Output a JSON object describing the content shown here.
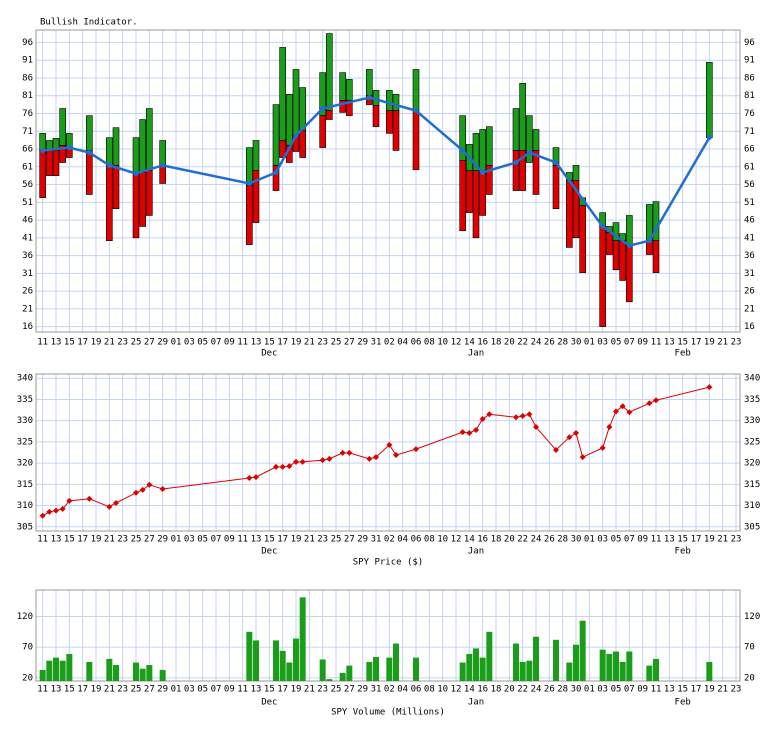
{
  "x_axis": {
    "xlim": [
      -1,
      104.6
    ],
    "xticks": [
      {
        "value": 0,
        "label": "11"
      },
      {
        "value": 2,
        "label": "13"
      },
      {
        "value": 4,
        "label": "15"
      },
      {
        "value": 6,
        "label": "17"
      },
      {
        "value": 8,
        "label": "19"
      },
      {
        "value": 10,
        "label": "21"
      },
      {
        "value": 12,
        "label": "23"
      },
      {
        "value": 14,
        "label": "25"
      },
      {
        "value": 16,
        "label": "27"
      },
      {
        "value": 18,
        "label": "29"
      },
      {
        "value": 20,
        "label": "01"
      },
      {
        "value": 22,
        "label": "03"
      },
      {
        "value": 24,
        "label": "05"
      },
      {
        "value": 26,
        "label": "07"
      },
      {
        "value": 28,
        "label": "09"
      },
      {
        "value": 30,
        "label": "11"
      },
      {
        "value": 32,
        "label": "13"
      },
      {
        "value": 34,
        "label": "15"
      },
      {
        "value": 36,
        "label": "17"
      },
      {
        "value": 38,
        "label": "19"
      },
      {
        "value": 40,
        "label": "21"
      },
      {
        "value": 42,
        "label": "23"
      },
      {
        "value": 44,
        "label": "25"
      },
      {
        "value": 46,
        "label": "27"
      },
      {
        "value": 48,
        "label": "29"
      },
      {
        "value": 50,
        "label": "31"
      },
      {
        "value": 52,
        "label": "02"
      },
      {
        "value": 54,
        "label": "04"
      },
      {
        "value": 56,
        "label": "06"
      },
      {
        "value": 58,
        "label": "08"
      },
      {
        "value": 60,
        "label": "10"
      },
      {
        "value": 62,
        "label": "12"
      },
      {
        "value": 64,
        "label": "14"
      },
      {
        "value": 66,
        "label": "16"
      },
      {
        "value": 68,
        "label": "18"
      },
      {
        "value": 70,
        "label": "20"
      },
      {
        "value": 72,
        "label": "22"
      },
      {
        "value": 74,
        "label": "24"
      },
      {
        "value": 76,
        "label": "26"
      },
      {
        "value": 78,
        "label": "28"
      },
      {
        "value": 80,
        "label": "30"
      },
      {
        "value": 82,
        "label": "01"
      },
      {
        "value": 84,
        "label": "03"
      },
      {
        "value": 86,
        "label": "05"
      },
      {
        "value": 88,
        "label": "07"
      },
      {
        "value": 90,
        "label": "09"
      },
      {
        "value": 92,
        "label": "11"
      },
      {
        "value": 94,
        "label": "13"
      },
      {
        "value": 96,
        "label": "15"
      },
      {
        "value": 98,
        "label": "17"
      },
      {
        "value": 100,
        "label": "19"
      },
      {
        "value": 102,
        "label": "21"
      },
      {
        "value": 104,
        "label": "23"
      }
    ],
    "months": [
      {
        "value": 34,
        "label": "Dec"
      },
      {
        "value": 65,
        "label": "Jan"
      },
      {
        "value": 96,
        "label": "Feb"
      }
    ],
    "x": [
      0,
      1,
      2,
      3,
      4,
      7,
      10,
      11,
      14,
      15,
      16,
      18,
      31,
      32,
      35,
      36,
      37,
      38,
      39,
      42,
      43,
      45,
      46,
      49,
      50,
      52,
      53,
      56,
      63,
      64,
      65,
      66,
      67,
      71,
      72,
      73,
      74,
      77,
      79,
      80,
      81,
      84,
      85,
      86,
      87,
      88,
      91,
      92,
      100
    ]
  },
  "chart_data": [
    {
      "type": "range",
      "title": "Bullish Indicator.",
      "ylim": [
        14.5,
        99.5
      ],
      "yticks": [
        16,
        21,
        26,
        31,
        36,
        41,
        46,
        51,
        56,
        61,
        66,
        71,
        76,
        81,
        86,
        91,
        96
      ],
      "grid": true,
      "colors": {
        "up": "#1a9e1a",
        "down": "#e00000"
      },
      "high": [
        70.4,
        68.4,
        69,
        77.4,
        70.4,
        75.4,
        69.2,
        72,
        69.2,
        74.3,
        77.4,
        68.4,
        66.4,
        68.4,
        78.5,
        94.6,
        81.4,
        88.4,
        83.3,
        87.5,
        98.5,
        87.5,
        85.6,
        88.4,
        82.5,
        82.5,
        81.4,
        88.4,
        75.4,
        67.3,
        70.4,
        71.5,
        72.3,
        77.4,
        84.5,
        75.4,
        71.5,
        66.4,
        59.4,
        61.4,
        52.3,
        48.1,
        44.2,
        45.3,
        42.2,
        47.3,
        50.4,
        51.2,
        90.4
      ],
      "split": [
        65.6,
        65.6,
        65.6,
        67,
        66,
        65.6,
        61.4,
        61.4,
        59.4,
        59.4,
        59.9,
        61.4,
        55.7,
        59.9,
        61.4,
        68.4,
        67,
        69.8,
        71.2,
        75.4,
        76.8,
        79.7,
        79.7,
        81.1,
        78.3,
        76.8,
        76.8,
        76.8,
        62.8,
        59.9,
        59.9,
        59.9,
        61.4,
        65.6,
        65.6,
        62.2,
        65.6,
        61.4,
        57.1,
        57.1,
        50.1,
        44.2,
        42.5,
        40.2,
        40.2,
        38.8,
        40.2,
        40.2,
        69.2
      ],
      "low": [
        52.3,
        58.5,
        58.5,
        62.2,
        63.6,
        53.2,
        40.2,
        49.2,
        41,
        44.2,
        47.3,
        56.3,
        39.1,
        45.3,
        54.3,
        63.6,
        62.2,
        65.3,
        63.6,
        66.4,
        74.3,
        76.3,
        75.4,
        78.5,
        72.3,
        70.4,
        65.6,
        60.2,
        43,
        48.1,
        41,
        47.3,
        53.2,
        54.3,
        54.3,
        62.2,
        53.2,
        49.2,
        38.3,
        41,
        31.2,
        16,
        36.3,
        32,
        29,
        23,
        36.3,
        31.2,
        69.2
      ],
      "average": {
        "color": "#1f6fd0",
        "x": [
          0,
          4,
          7,
          10,
          14,
          18,
          31,
          35,
          38,
          42,
          49,
          56,
          63,
          66,
          71,
          73,
          77,
          84,
          88,
          91,
          100
        ],
        "values": [
          65.6,
          66.4,
          65,
          61.4,
          59.1,
          61.4,
          56.3,
          59.4,
          69.8,
          77.4,
          80.5,
          76.8,
          65.6,
          59.4,
          62.2,
          65,
          62.2,
          44.2,
          38.8,
          40.2,
          69.2
        ]
      }
    },
    {
      "type": "line",
      "xlabel": "SPY Price ($)",
      "ylim": [
        304,
        341
      ],
      "yticks": [
        305,
        310,
        315,
        320,
        325,
        330,
        335,
        340
      ],
      "grid": true,
      "color": "#dd0000",
      "values": [
        307.6,
        308.5,
        308.8,
        309.2,
        311.1,
        311.6,
        309.7,
        310.6,
        313,
        313.7,
        314.9,
        313.9,
        316.5,
        316.7,
        319.1,
        319.1,
        319.3,
        320.3,
        320.3,
        320.7,
        321,
        322.4,
        322.4,
        321,
        321.4,
        324.3,
        321.9,
        323.3,
        327.3,
        327.1,
        327.8,
        330.4,
        331.5,
        330.8,
        331.1,
        331.5,
        328.5,
        323.1,
        326.1,
        327.1,
        321.4,
        323.6,
        328.5,
        332.2,
        333.4,
        332,
        334.1,
        334.8,
        337.9
      ]
    },
    {
      "type": "bar",
      "xlabel": "SPY Volume (Millions)",
      "ylim": [
        15,
        163
      ],
      "yticks": [
        20,
        70,
        120
      ],
      "grid": true,
      "color": "#1a9e1a",
      "values": [
        33,
        48,
        53,
        48,
        59,
        46,
        51,
        41,
        45,
        35,
        41,
        33,
        95,
        81,
        81,
        64,
        45,
        84,
        151,
        50,
        18,
        28,
        40,
        46,
        54,
        53,
        76,
        53,
        45,
        59,
        68,
        53,
        95,
        76,
        46,
        48,
        87,
        82,
        45,
        74,
        113,
        66,
        59,
        63,
        46,
        63,
        40,
        51,
        46
      ]
    }
  ]
}
